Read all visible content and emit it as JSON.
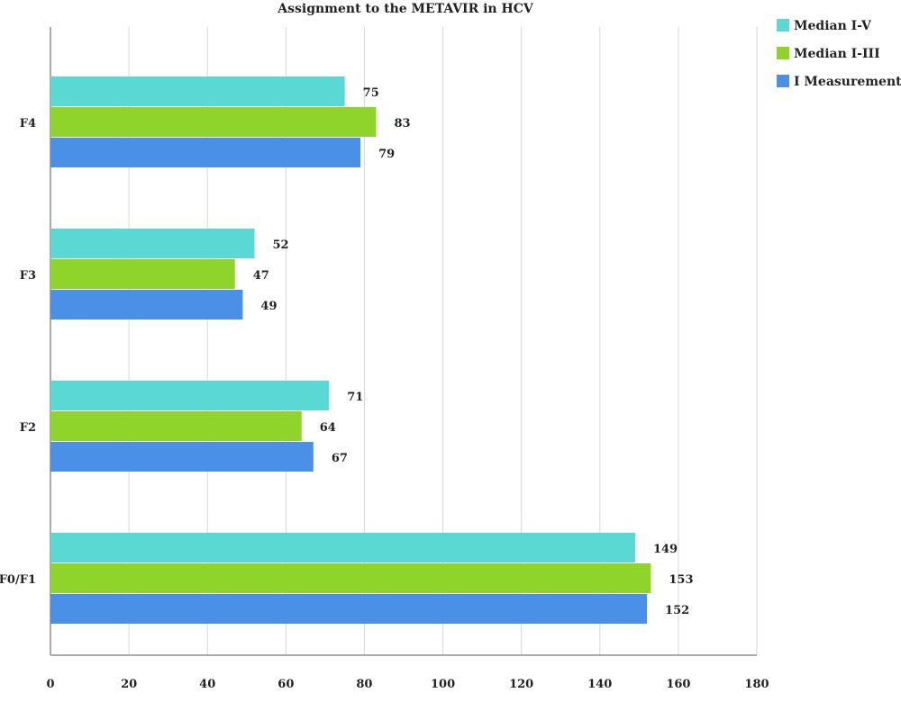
{
  "colors": {
    "grid": "#d6d6d6",
    "axis": "#8f8f8f",
    "text": "#222222"
  },
  "chart_data": {
    "type": "bar",
    "orientation": "horizontal",
    "title": "Assignment to the METAVIR in HCV",
    "xlabel": "",
    "ylabel": "",
    "categories": [
      "F4",
      "F3",
      "F2",
      "F0/F1"
    ],
    "series": [
      {
        "name": "Median I-V",
        "color": "#5ad8d4",
        "values": [
          75,
          52,
          71,
          149
        ]
      },
      {
        "name": "Median I-III",
        "color": "#8fd42a",
        "values": [
          83,
          47,
          64,
          153
        ]
      },
      {
        "name": "I Measurement",
        "color": "#4a90e6",
        "values": [
          79,
          49,
          67,
          152
        ]
      }
    ],
    "xlim": [
      0,
      180
    ],
    "xticks": [
      0,
      20,
      40,
      60,
      80,
      100,
      120,
      140,
      160,
      180
    ],
    "grid": true,
    "legend_position": "top-right",
    "data_labels": true
  }
}
